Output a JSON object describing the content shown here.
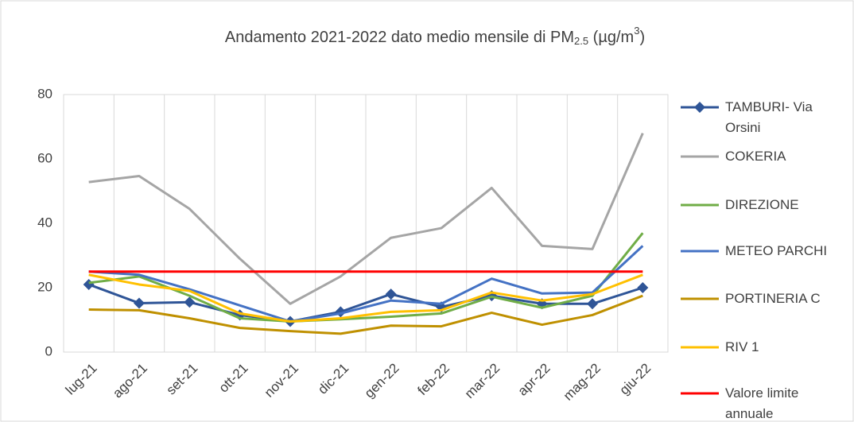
{
  "chart_data": {
    "type": "line",
    "title": [
      "Andamento 2021-2022 dato medio mensile di PM",
      "2.5",
      " (µg/m",
      "3",
      ")"
    ],
    "categories": [
      "lug-21",
      "ago-21",
      "set-21",
      "ott-21",
      "nov-21",
      "dic-21",
      "gen-22",
      "feb-22",
      "mar-22",
      "apr-22",
      "mag-22",
      "giu-22"
    ],
    "series": [
      {
        "name": "TAMBURI- Via Orsini",
        "color": "#2f5597",
        "marker": "diamond",
        "values": [
          21,
          15.2,
          15.5,
          11.5,
          9.5,
          12.5,
          18,
          14,
          17.5,
          15,
          15,
          20
        ]
      },
      {
        "name": "COKERIA",
        "color": "#a5a5a5",
        "values": [
          52.8,
          54.7,
          44.5,
          29,
          15,
          23.5,
          35.5,
          38.5,
          51,
          33,
          32,
          68
        ]
      },
      {
        "name": "DIREZIONE",
        "color": "#70ad47",
        "values": [
          21.5,
          23.5,
          17.5,
          10.5,
          9.5,
          10.2,
          11,
          12,
          17.2,
          13.8,
          17.5,
          37
        ]
      },
      {
        "name": "METEO PARCHI",
        "color": "#4472c4",
        "values": [
          25,
          24,
          19.5,
          14.5,
          9.5,
          12,
          16,
          15,
          22.8,
          18.2,
          18.5,
          33
        ]
      },
      {
        "name": "PORTINERIA C",
        "color": "#bf9000",
        "values": [
          13.2,
          13,
          10.5,
          7.5,
          6.5,
          5.7,
          8.2,
          8,
          12.2,
          8.5,
          11.5,
          17.5
        ]
      },
      {
        "name": "RIV 1",
        "color": "#ffc000",
        "values": [
          24,
          21,
          19,
          12,
          9.5,
          10.5,
          12.5,
          13,
          18.5,
          16,
          18,
          24
        ]
      },
      {
        "name": "Valore limite annuale",
        "color": "#ff0000",
        "values": [
          25,
          25,
          25,
          25,
          25,
          25,
          25,
          25,
          25,
          25,
          25,
          25
        ]
      }
    ],
    "ylim": [
      0,
      80
    ],
    "yticks": [
      0,
      20,
      40,
      60,
      80
    ],
    "grid": "vertical",
    "legend": "right"
  }
}
